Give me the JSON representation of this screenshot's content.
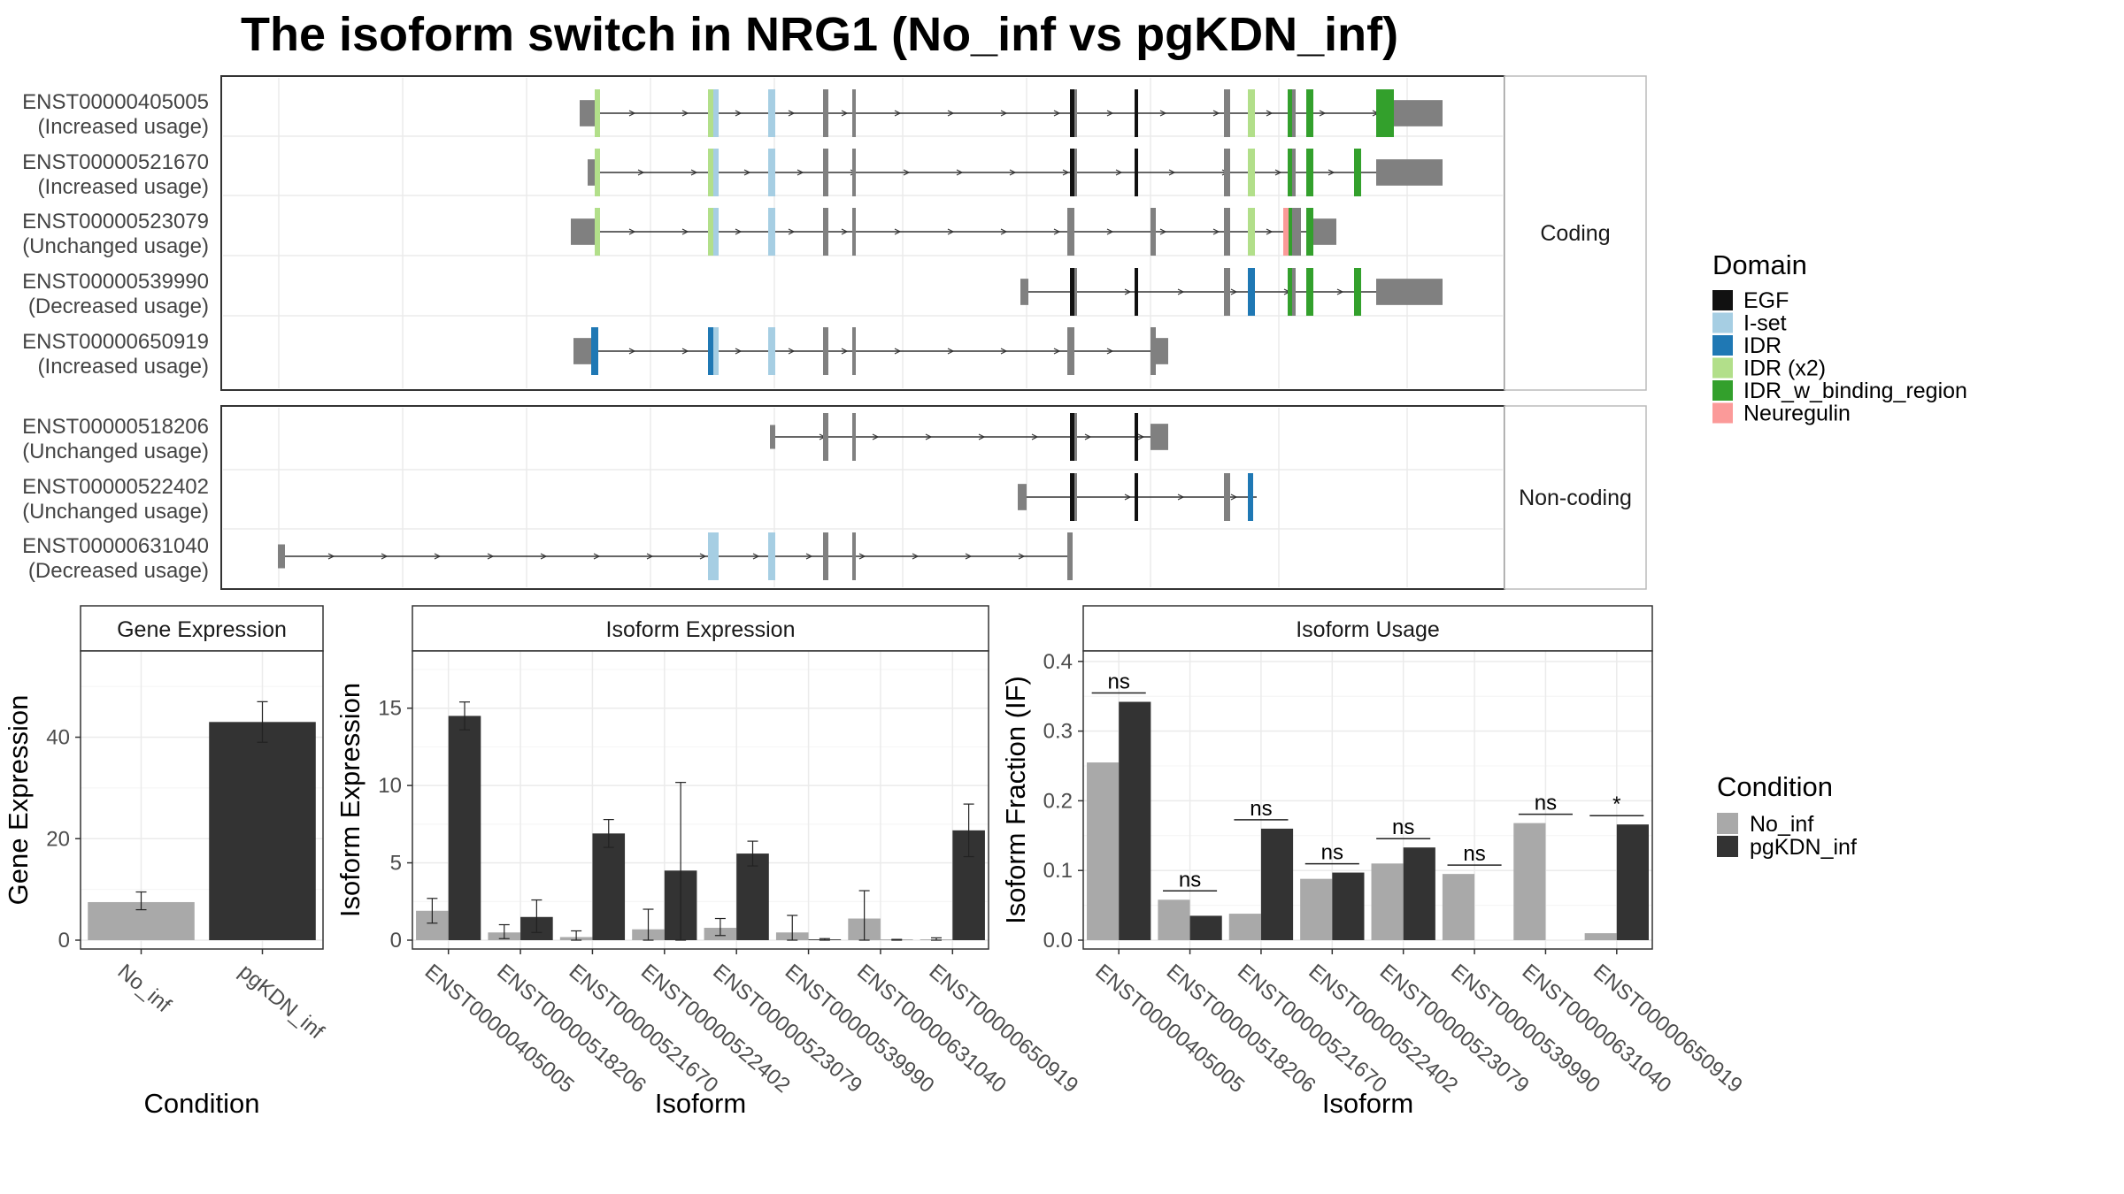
{
  "title": "The isoform switch in NRG1 (No_inf vs pgKDN_inf)",
  "colors": {
    "EGF": "#111111",
    "I-set": "#a6cee3",
    "IDR": "#1f78b4",
    "IDR (x2)": "#b2df8a",
    "IDR_w_binding_region": "#33a02c",
    "Neuregulin": "#fb9a99",
    "exon": "#808080",
    "no_inf": "#a9a9a9",
    "pgkdn_inf": "#333333"
  },
  "structure": {
    "groups": [
      {
        "label": "Coding",
        "tracks": [
          {
            "id": "ENST00000405005",
            "status": "(Increased usage)"
          },
          {
            "id": "ENST00000521670",
            "status": "(Increased usage)"
          },
          {
            "id": "ENST00000523079",
            "status": "(Unchanged usage)"
          },
          {
            "id": "ENST00000539990",
            "status": "(Decreased usage)"
          },
          {
            "id": "ENST00000650919",
            "status": "(Increased usage)"
          }
        ]
      },
      {
        "label": "Non-coding",
        "tracks": [
          {
            "id": "ENST00000518206",
            "status": "(Unchanged usage)"
          },
          {
            "id": "ENST00000522402",
            "status": "(Unchanged usage)"
          },
          {
            "id": "ENST00000631040",
            "status": "(Decreased usage)"
          }
        ]
      }
    ]
  },
  "legend_domain": {
    "title": "Domain",
    "items": [
      "EGF",
      "I-set",
      "IDR",
      "IDR (x2)",
      "IDR_w_binding_region",
      "Neuregulin"
    ]
  },
  "legend_condition": {
    "title": "Condition",
    "items": [
      "No_inf",
      "pgKDN_inf"
    ]
  },
  "chart_data": [
    {
      "type": "bar",
      "title": "Gene Expression",
      "xlabel": "Condition",
      "ylabel": "Gene Expression",
      "categories": [
        "No_inf",
        "pgKDN_inf"
      ],
      "values": [
        7.5,
        43
      ],
      "error": [
        [
          6,
          9.5
        ],
        [
          39,
          47
        ]
      ],
      "ylim": [
        0,
        57
      ],
      "yticks": [
        0,
        20,
        40
      ]
    },
    {
      "type": "bar",
      "title": "Isoform Expression",
      "xlabel": "Isoform",
      "ylabel": "Isoform Expression",
      "categories": [
        "ENST00000405005",
        "ENST00000518206",
        "ENST00000521670",
        "ENST00000522402",
        "ENST00000523079",
        "ENST00000539990",
        "ENST00000631040",
        "ENST00000650919"
      ],
      "series": [
        {
          "name": "No_inf",
          "values": [
            1.9,
            0.5,
            0.2,
            0.7,
            0.8,
            0.5,
            1.4,
            0.05
          ],
          "error": [
            [
              1.1,
              2.7
            ],
            [
              0.1,
              1.0
            ],
            [
              0.0,
              0.6
            ],
            [
              0.0,
              2.0
            ],
            [
              0.3,
              1.4
            ],
            [
              0.0,
              1.6
            ],
            [
              0.0,
              3.2
            ],
            [
              0.0,
              0.15
            ]
          ]
        },
        {
          "name": "pgKDN_inf",
          "values": [
            14.5,
            1.5,
            6.9,
            4.5,
            5.6,
            0.05,
            0.02,
            7.1
          ],
          "error": [
            [
              13.6,
              15.4
            ],
            [
              0.5,
              2.6
            ],
            [
              6.0,
              7.8
            ],
            [
              0.0,
              10.2
            ],
            [
              4.8,
              6.4
            ],
            [
              0.0,
              0.1
            ],
            [
              0.0,
              0.05
            ],
            [
              5.4,
              8.8
            ]
          ]
        }
      ],
      "ylim": [
        0,
        18.7
      ],
      "yticks": [
        0,
        5,
        10,
        15
      ]
    },
    {
      "type": "bar",
      "title": "Isoform Usage",
      "xlabel": "Isoform",
      "ylabel": "Isoform Fraction (IF)",
      "categories": [
        "ENST00000405005",
        "ENST00000518206",
        "ENST00000521670",
        "ENST00000522402",
        "ENST00000523079",
        "ENST00000539990",
        "ENST00000631040",
        "ENST00000650919"
      ],
      "series": [
        {
          "name": "No_inf",
          "values": [
            0.255,
            0.058,
            0.038,
            0.088,
            0.11,
            0.095,
            0.168,
            0.01
          ]
        },
        {
          "name": "pgKDN_inf",
          "values": [
            0.342,
            0.035,
            0.16,
            0.097,
            0.133,
            0.0,
            0.0,
            0.166
          ]
        }
      ],
      "annotations": [
        "ns",
        "ns",
        "ns",
        "ns",
        "ns",
        "ns",
        "ns",
        "*"
      ],
      "ylim": [
        0,
        0.415
      ],
      "yticks": [
        "0.0",
        "0.1",
        "0.2",
        "0.3",
        "0.4"
      ]
    }
  ]
}
